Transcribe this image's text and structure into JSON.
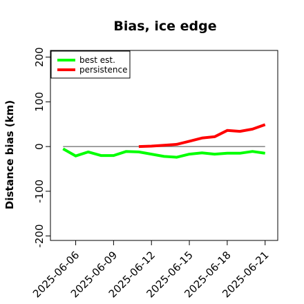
{
  "chart_data": {
    "type": "line",
    "title": "Bias, ice edge",
    "xlabel": "",
    "ylabel": "Distance bias (km)",
    "x_tick_labels": [
      "2025-06-06",
      "2025-06-09",
      "2025-06-12",
      "2025-06-15",
      "2025-06-18",
      "2025-06-21"
    ],
    "y_tick_labels": [
      "-200",
      "-100",
      "0",
      "100",
      "200"
    ],
    "y_ticks": [
      -200,
      -100,
      0,
      100,
      200
    ],
    "xlim": [
      "2025-06-04",
      "2025-06-22"
    ],
    "ylim": [
      -210,
      215
    ],
    "reference_line": {
      "y": 0,
      "color": "#808080"
    },
    "legend_position": "top-left",
    "series": [
      {
        "name": "best est.",
        "color": "#00ff00",
        "points": [
          [
            "2025-06-05",
            -5
          ],
          [
            "2025-06-06",
            -21
          ],
          [
            "2025-06-07",
            -12
          ],
          [
            "2025-06-08",
            -20
          ],
          [
            "2025-06-09",
            -20
          ],
          [
            "2025-06-10",
            -11
          ],
          [
            "2025-06-11",
            -12
          ],
          [
            "2025-06-12",
            -17
          ],
          [
            "2025-06-13",
            -22
          ],
          [
            "2025-06-14",
            -24
          ],
          [
            "2025-06-15",
            -17
          ],
          [
            "2025-06-16",
            -14
          ],
          [
            "2025-06-17",
            -17
          ],
          [
            "2025-06-18",
            -15
          ],
          [
            "2025-06-19",
            -15
          ],
          [
            "2025-06-20",
            -11
          ],
          [
            "2025-06-21",
            -15
          ]
        ]
      },
      {
        "name": "persistence",
        "color": "#ff0000",
        "points": [
          [
            "2025-06-11",
            0
          ],
          [
            "2025-06-12",
            1
          ],
          [
            "2025-06-13",
            3
          ],
          [
            "2025-06-14",
            5
          ],
          [
            "2025-06-15",
            12
          ],
          [
            "2025-06-16",
            19
          ],
          [
            "2025-06-17",
            22
          ],
          [
            "2025-06-18",
            36
          ],
          [
            "2025-06-19",
            34
          ],
          [
            "2025-06-20",
            39
          ],
          [
            "2025-06-21",
            49
          ]
        ]
      }
    ]
  }
}
